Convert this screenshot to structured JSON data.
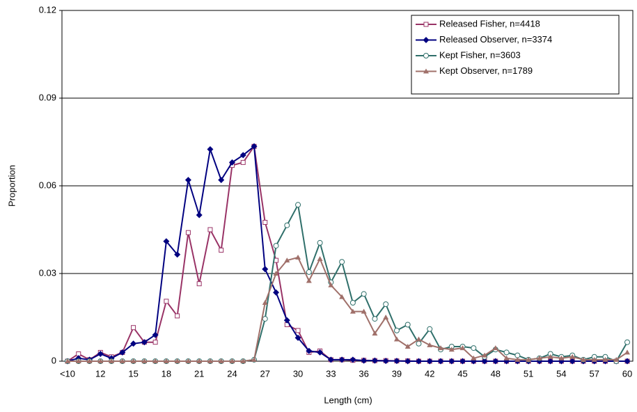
{
  "chart_data": {
    "type": "line",
    "xlabel": "Length (cm)",
    "ylabel": "Proportion",
    "categories": [
      "<10",
      null,
      null,
      "12",
      null,
      null,
      "15",
      null,
      null,
      "18",
      null,
      null,
      "21",
      null,
      null,
      "24",
      null,
      null,
      "27",
      null,
      null,
      "30",
      null,
      null,
      "33",
      null,
      null,
      "36",
      null,
      null,
      "39",
      null,
      null,
      "42",
      null,
      null,
      "45",
      null,
      null,
      "48",
      null,
      null,
      "51",
      null,
      null,
      "54",
      null,
      null,
      "57",
      null,
      null,
      "60"
    ],
    "ylim": [
      0,
      0.12
    ],
    "yticks": [
      0,
      0.03,
      0.06,
      0.09,
      0.12
    ],
    "grid": true,
    "legend": "upper right",
    "series": [
      {
        "name": "Released Fisher, n=4418",
        "color": "#993366",
        "marker": "square-open",
        "values": [
          0,
          0.0025,
          0.0005,
          0.003,
          0.0015,
          0.003,
          0.0115,
          0.0065,
          0.0065,
          0.0205,
          0.0155,
          0.044,
          0.0265,
          0.045,
          0.038,
          0.067,
          0.068,
          0.0735,
          0.0475,
          0.0345,
          0.0125,
          0.0105,
          0.003,
          0.0035,
          0.0005,
          0.0005,
          0.0003,
          0.0003,
          0.0002,
          0.0002,
          0.0001,
          0.0001,
          0,
          0,
          0,
          0,
          0,
          0,
          0,
          0,
          0,
          0,
          0,
          0,
          0,
          0,
          0,
          0,
          0,
          0,
          0,
          0
        ]
      },
      {
        "name": "Released Observer, n=3374",
        "color": "#000080",
        "marker": "diamond",
        "values": [
          0,
          0.001,
          0.0005,
          0.0025,
          0.001,
          0.003,
          0.006,
          0.0065,
          0.009,
          0.041,
          0.0365,
          0.062,
          0.05,
          0.0725,
          0.062,
          0.068,
          0.0705,
          0.0735,
          0.0315,
          0.0235,
          0.014,
          0.008,
          0.0035,
          0.003,
          0.0005,
          0.0005,
          0.0005,
          0.0002,
          0.0002,
          0.0001,
          0.0001,
          0,
          0,
          0,
          0,
          0,
          0,
          0,
          0,
          0,
          0,
          0,
          0,
          0,
          0,
          0,
          0,
          0,
          0,
          0,
          0,
          0
        ]
      },
      {
        "name": "Kept Fisher, n=3603",
        "color": "#2f6f6a",
        "marker": "circle-open",
        "values": [
          0,
          0,
          0,
          0,
          0,
          0,
          0,
          0,
          0,
          0,
          0,
          0,
          0,
          0,
          0,
          0,
          0,
          0.0005,
          0.0145,
          0.0395,
          0.0465,
          0.0535,
          0.0305,
          0.0405,
          0.027,
          0.034,
          0.02,
          0.023,
          0.0145,
          0.0195,
          0.0105,
          0.0125,
          0.006,
          0.011,
          0.004,
          0.005,
          0.005,
          0.0045,
          0.0015,
          0.004,
          0.003,
          0.002,
          0.0005,
          0.001,
          0.0025,
          0.0015,
          0.002,
          0.0005,
          0.0015,
          0.0015,
          0,
          0.0065
        ]
      },
      {
        "name": "Kept Observer, n=1789",
        "color": "#a0706a",
        "marker": "triangle",
        "values": [
          0,
          0,
          0,
          0,
          0,
          0,
          0,
          0,
          0,
          0,
          0,
          0,
          0,
          0,
          0,
          0,
          0,
          0.0005,
          0.02,
          0.03,
          0.0345,
          0.0355,
          0.0275,
          0.035,
          0.026,
          0.022,
          0.017,
          0.017,
          0.0095,
          0.015,
          0.0075,
          0.005,
          0.0075,
          0.0055,
          0.0045,
          0.004,
          0.0045,
          0.001,
          0.002,
          0.0045,
          0.001,
          0.0005,
          0.0005,
          0.001,
          0.0015,
          0.001,
          0.0015,
          0.0005,
          0.0005,
          0.0005,
          0.0005,
          0.003
        ]
      }
    ]
  }
}
